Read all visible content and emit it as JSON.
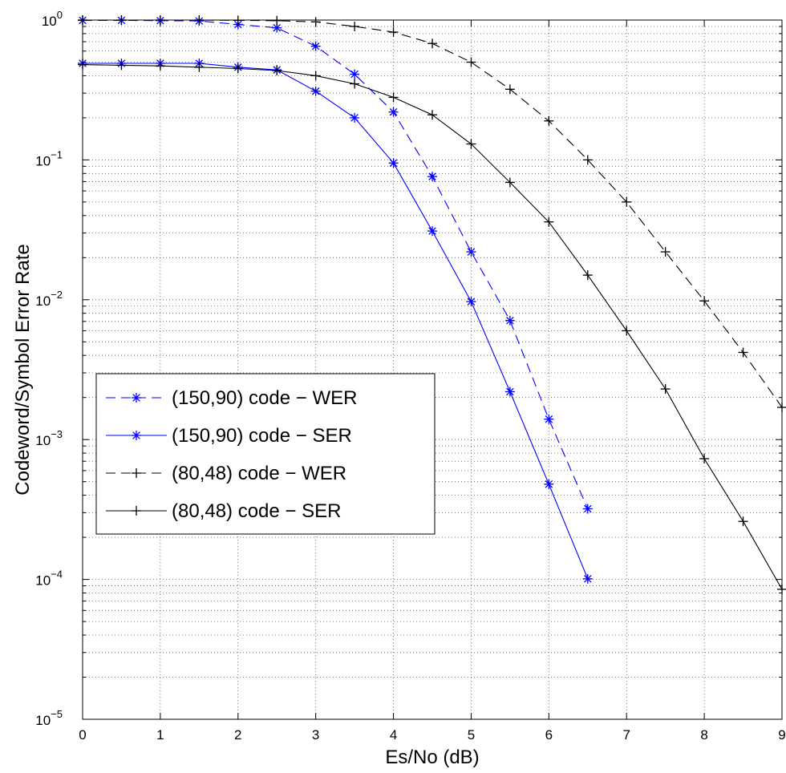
{
  "chart_data": {
    "type": "line",
    "xlabel": "Es/No (dB)",
    "ylabel": "Codeword/Symbol Error Rate",
    "xlim": [
      0,
      9
    ],
    "ylim": [
      1e-05,
      1
    ],
    "yscale": "log",
    "grid": true,
    "legend_position": "lower-left",
    "x_ticks": [
      "0",
      "1",
      "2",
      "3",
      "4",
      "5",
      "6",
      "7",
      "8",
      "9"
    ],
    "y_ticks": [
      {
        "base": "10",
        "exp": "−5"
      },
      {
        "base": "10",
        "exp": "−4"
      },
      {
        "base": "10",
        "exp": "−3"
      },
      {
        "base": "10",
        "exp": "−2"
      },
      {
        "base": "10",
        "exp": "−1"
      },
      {
        "base": "10",
        "exp": "0"
      }
    ],
    "series": [
      {
        "name": "(150,90) code − WER",
        "color": "#0000ff",
        "line_style": "dashed",
        "marker": "asterisk",
        "x": [
          0,
          0.5,
          1,
          1.5,
          2,
          2.5,
          3,
          3.5,
          4,
          4.5,
          5,
          5.5,
          6,
          6.5
        ],
        "y": [
          0.995,
          0.995,
          0.99,
          0.985,
          0.93,
          0.88,
          0.65,
          0.41,
          0.22,
          0.076,
          0.022,
          0.0071,
          0.0014,
          0.00032
        ]
      },
      {
        "name": "(150,90) code − SER",
        "color": "#0000ff",
        "line_style": "solid",
        "marker": "asterisk",
        "x": [
          0,
          0.5,
          1,
          1.5,
          2,
          2.5,
          3,
          3.5,
          4,
          4.5,
          5,
          5.5,
          6,
          6.5
        ],
        "y": [
          0.49,
          0.49,
          0.49,
          0.49,
          0.46,
          0.44,
          0.31,
          0.2,
          0.095,
          0.031,
          0.0097,
          0.0022,
          0.00048,
          0.000101
        ]
      },
      {
        "name": "(80,48) code − WER",
        "color": "#000000",
        "line_style": "dashed",
        "marker": "plus",
        "x": [
          0,
          0.5,
          1,
          1.5,
          2,
          2.5,
          3,
          3.5,
          4,
          4.5,
          5,
          5.5,
          6,
          6.5,
          7,
          7.5,
          8,
          8.5,
          9
        ],
        "y": [
          1,
          1,
          1,
          1,
          0.995,
          0.99,
          0.97,
          0.9,
          0.82,
          0.68,
          0.5,
          0.32,
          0.19,
          0.1,
          0.05,
          0.022,
          0.0098,
          0.0042,
          0.0017
        ]
      },
      {
        "name": "(80,48) code − SER",
        "color": "#000000",
        "line_style": "solid",
        "marker": "plus",
        "x": [
          0,
          0.5,
          1,
          1.5,
          2,
          2.5,
          3,
          3.5,
          4,
          4.5,
          5,
          5.5,
          6,
          6.5,
          7,
          7.5,
          8,
          8.5,
          9
        ],
        "y": [
          0.48,
          0.475,
          0.47,
          0.46,
          0.45,
          0.435,
          0.4,
          0.35,
          0.28,
          0.21,
          0.13,
          0.069,
          0.036,
          0.015,
          0.006,
          0.0023,
          0.00073,
          0.00026,
          8.5e-05
        ]
      }
    ]
  }
}
